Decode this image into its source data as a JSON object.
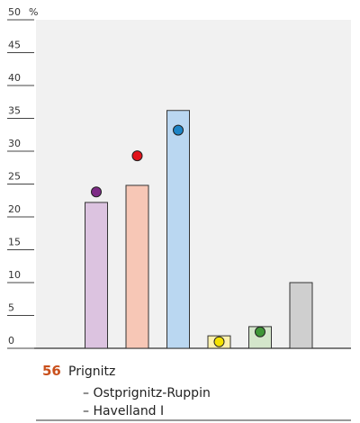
{
  "chart_data": {
    "type": "bar",
    "categories": [
      null,
      null,
      null,
      null,
      null,
      null
    ],
    "values": [
      22.2,
      24.8,
      36.2,
      1.9,
      3.3,
      10.0
    ],
    "colors": [
      "#dcc3e0",
      "#f7c7b6",
      "#bad7f1",
      "#fdf1ae",
      "#d4e6cb",
      "#cfcfcf"
    ],
    "previous_values": [
      23.8,
      29.3,
      33.2,
      1.0,
      2.5,
      null
    ],
    "previous_colors": [
      "#7d2a86",
      "#e2131b",
      "#1c84c6",
      "#f4e200",
      "#3f9638",
      null
    ],
    "ylim": [
      0,
      50
    ],
    "yticks": [
      0,
      5,
      10,
      15,
      20,
      25,
      30,
      35,
      40,
      45,
      50
    ],
    "y_unit": "%"
  },
  "constituency": {
    "number": "56",
    "lines": [
      "Prignitz",
      "– Ostprignitz-Ruppin",
      "– Havelland I"
    ]
  }
}
